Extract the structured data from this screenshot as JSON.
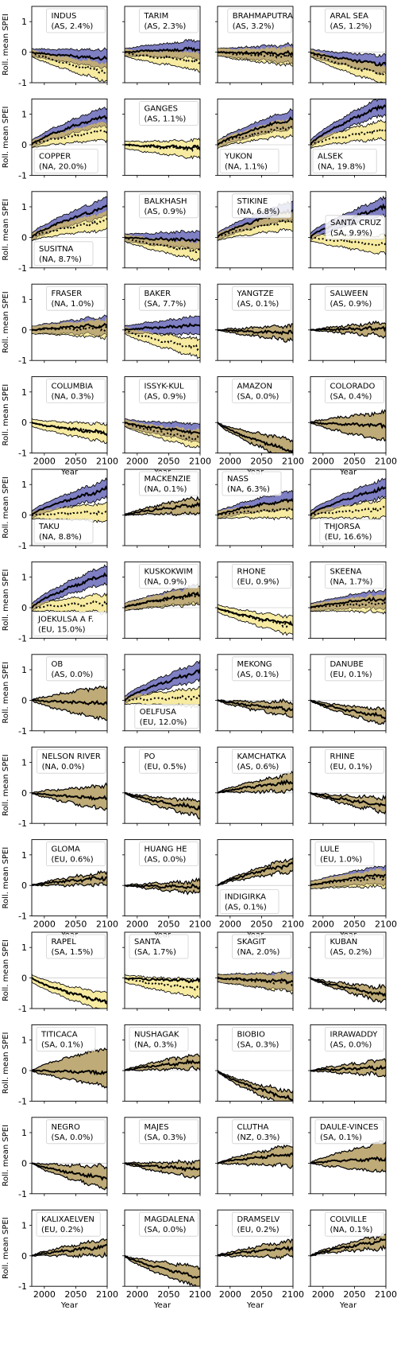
{
  "figure": {
    "ylabel": "Roll. mean SPEI",
    "xlabel": "Year",
    "xticks": [
      2000,
      2050,
      2100
    ],
    "yticks": [
      -1,
      0,
      1
    ],
    "colors": {
      "blue": "#7f7fc4",
      "yellow": "#f7eba1",
      "overlap": "#bfab77",
      "line": "#000000"
    }
  },
  "chart_data": {
    "type": "area",
    "x_range": [
      1980,
      2100
    ],
    "y_range": [
      -1,
      1.5
    ],
    "panels": [
      {
        "name": "INDUS",
        "region": "(AS, 2.4%)",
        "label_pos": "top",
        "end_mid": -0.2,
        "end_dash": -0.65,
        "end_upper": 0.05,
        "end_lower": -0.4,
        "blue": true,
        "yellow": true
      },
      {
        "name": "TARIM",
        "region": "(AS, 2.3%)",
        "label_pos": "top",
        "end_mid": 0.1,
        "end_dash": -0.3,
        "end_upper": 0.5,
        "end_lower": -0.1,
        "blue": true,
        "yellow": true
      },
      {
        "name": "BRAHMAPUTRA",
        "region": "(AS, 3.2%)",
        "label_pos": "top",
        "end_mid": -0.05,
        "end_dash": -0.15,
        "end_upper": 0.1,
        "end_lower": -0.3,
        "blue": true,
        "yellow": true
      },
      {
        "name": "ARAL SEA",
        "region": "(AS, 1.2%)",
        "label_pos": "top",
        "end_mid": -0.4,
        "end_dash": -0.75,
        "end_upper": 0.0,
        "end_lower": -0.85,
        "blue": true,
        "yellow": true
      },
      {
        "name": "COPPER",
        "region": "(NA, 20.0%)",
        "label_pos": "bottom-left",
        "end_mid": 0.95,
        "end_dash": 0.45,
        "end_upper": 1.15,
        "end_lower": 0.2,
        "blue": true,
        "yellow": true
      },
      {
        "name": "GANGES",
        "region": "(AS, 1.1%)",
        "label_pos": "top",
        "end_mid": -0.1,
        "end_dash": -0.15,
        "end_upper": 0.1,
        "end_lower": -0.35,
        "blue": false,
        "yellow": true
      },
      {
        "name": "YUKON",
        "region": "(NA, 1.1%)",
        "label_pos": "bottom-left",
        "end_mid": 0.85,
        "end_dash": 0.6,
        "end_upper": 1.2,
        "end_lower": 0.35,
        "blue": true,
        "yellow": true
      },
      {
        "name": "ALSEK",
        "region": "(NA, 19.8%)",
        "label_pos": "bottom-left",
        "end_mid": 1.3,
        "end_dash": 0.5,
        "end_upper": 1.5,
        "end_lower": 0.1,
        "blue": true,
        "yellow": true
      },
      {
        "name": "SUSITNA",
        "region": "(NA, 8.7%)",
        "label_pos": "bottom-left",
        "end_mid": 1.0,
        "end_dash": 0.55,
        "end_upper": 1.1,
        "end_lower": 0.3,
        "blue": true,
        "yellow": true
      },
      {
        "name": "BALKHASH",
        "region": "(AS, 0.9%)",
        "label_pos": "top",
        "end_mid": -0.1,
        "end_dash": -0.45,
        "end_upper": 0.2,
        "end_lower": -0.6,
        "blue": true,
        "yellow": true
      },
      {
        "name": "STIKINE",
        "region": "(NA, 6.8%)",
        "label_pos": "top",
        "end_mid": 0.9,
        "end_dash": 0.55,
        "end_upper": 1.05,
        "end_lower": 0.35,
        "blue": true,
        "yellow": true
      },
      {
        "name": "SANTA CRUZ",
        "region": "(SA, 9.9%)",
        "label_pos": "mid-right",
        "end_mid": 1.0,
        "end_dash": -0.25,
        "end_upper": 1.05,
        "end_lower": -0.5,
        "blue": true,
        "yellow": true
      },
      {
        "name": "FRASER",
        "region": "(NA, 1.0%)",
        "label_pos": "top",
        "end_mid": 0.15,
        "end_dash": 0.05,
        "end_upper": 0.3,
        "end_lower": -0.05,
        "blue": true,
        "yellow": true
      },
      {
        "name": "BAKER",
        "region": "(SA, 7.7%)",
        "label_pos": "top",
        "end_mid": 0.15,
        "end_dash": -0.6,
        "end_upper": 0.3,
        "end_lower": -0.75,
        "blue": true,
        "yellow": true
      },
      {
        "name": "YANGTZE",
        "region": "(AS, 0.1%)",
        "label_pos": "top",
        "end_mid": -0.1,
        "end_dash": -0.1,
        "end_upper": 0.1,
        "end_lower": -0.3,
        "blue": false,
        "yellow": false
      },
      {
        "name": "SALWEEN",
        "region": "(AS, 0.9%)",
        "label_pos": "top",
        "end_mid": 0.05,
        "end_dash": 0.05,
        "end_upper": 0.2,
        "end_lower": -0.15,
        "blue": false,
        "yellow": false
      },
      {
        "name": "COLUMBIA",
        "region": "(NA, 0.3%)",
        "label_pos": "top",
        "end_mid": -0.35,
        "end_dash": -0.35,
        "end_upper": -0.2,
        "end_lower": -0.55,
        "blue": false,
        "yellow": true
      },
      {
        "name": "ISSYK-KUL",
        "region": "(AS, 0.9%)",
        "label_pos": "top",
        "end_mid": -0.35,
        "end_dash": -0.55,
        "end_upper": -0.05,
        "end_lower": -0.85,
        "blue": true,
        "yellow": true
      },
      {
        "name": "AMAZON",
        "region": "(SA, 0.0%)",
        "label_pos": "top",
        "end_mid": -0.95,
        "end_dash": -0.95,
        "end_upper": -0.6,
        "end_lower": -1.2,
        "blue": false,
        "yellow": false
      },
      {
        "name": "COLORADO",
        "region": "(SA, 0.4%)",
        "label_pos": "top",
        "end_mid": -0.1,
        "end_dash": -0.1,
        "end_upper": 0.3,
        "end_lower": -0.55,
        "blue": false,
        "yellow": false
      },
      {
        "name": "TAKU",
        "region": "(NA, 8.8%)",
        "label_pos": "bottom-left",
        "end_mid": 0.85,
        "end_dash": 0.1,
        "end_upper": 1.0,
        "end_lower": -0.05,
        "blue": true,
        "yellow": true
      },
      {
        "name": "MACKENZIE",
        "region": "(NA, 0.1%)",
        "label_pos": "top",
        "end_mid": 0.35,
        "end_dash": 0.35,
        "end_upper": 0.55,
        "end_lower": 0.1,
        "blue": false,
        "yellow": false
      },
      {
        "name": "NASS",
        "region": "(NA, 6.3%)",
        "label_pos": "top-left",
        "end_mid": 0.5,
        "end_dash": 0.2,
        "end_upper": 0.65,
        "end_lower": 0.05,
        "blue": true,
        "yellow": true
      },
      {
        "name": "THJORSA",
        "region": "(EU, 16.6%)",
        "label_pos": "bottom-right",
        "end_mid": 0.9,
        "end_dash": 0.2,
        "end_upper": 1.05,
        "end_lower": -0.05,
        "blue": true,
        "yellow": true
      },
      {
        "name": "JOEKULSA A F.",
        "region": "(EU, 15.0%)",
        "label_pos": "bottom-left",
        "end_mid": 1.1,
        "end_dash": 0.15,
        "end_upper": 1.5,
        "end_lower": 0.0,
        "blue": true,
        "yellow": true
      },
      {
        "name": "KUSKOKWIM",
        "region": "(NA, 0.9%)",
        "label_pos": "top",
        "end_mid": 0.45,
        "end_dash": 0.4,
        "end_upper": 0.6,
        "end_lower": 0.2,
        "blue": true,
        "yellow": true
      },
      {
        "name": "RHONE",
        "region": "(EU, 0.9%)",
        "label_pos": "top",
        "end_mid": -0.55,
        "end_dash": -0.6,
        "end_upper": -0.4,
        "end_lower": -0.75,
        "blue": false,
        "yellow": true
      },
      {
        "name": "SKEENA",
        "region": "(NA, 1.7%)",
        "label_pos": "top",
        "end_mid": 0.3,
        "end_dash": 0.15,
        "end_upper": 0.45,
        "end_lower": 0.05,
        "blue": true,
        "yellow": true
      },
      {
        "name": "OB",
        "region": "(AS, 0.0%)",
        "label_pos": "top",
        "end_mid": -0.1,
        "end_dash": -0.1,
        "end_upper": 0.4,
        "end_lower": -0.6,
        "blue": false,
        "yellow": false
      },
      {
        "name": "OELFUSA",
        "region": "(EU, 12.0%)",
        "label_pos": "bottom-mid",
        "end_mid": 0.95,
        "end_dash": 0.1,
        "end_upper": 1.1,
        "end_lower": 0.0,
        "blue": true,
        "yellow": true
      },
      {
        "name": "MEKONG",
        "region": "(AS, 0.1%)",
        "label_pos": "top",
        "end_mid": -0.3,
        "end_dash": -0.3,
        "end_upper": -0.1,
        "end_lower": -0.5,
        "blue": false,
        "yellow": false
      },
      {
        "name": "DANUBE",
        "region": "(EU, 0.1%)",
        "label_pos": "top",
        "end_mid": -0.55,
        "end_dash": -0.55,
        "end_upper": -0.35,
        "end_lower": -0.75,
        "blue": false,
        "yellow": false
      },
      {
        "name": "NELSON RIVER",
        "region": "(NA, 0.0%)",
        "label_pos": "top",
        "end_mid": -0.2,
        "end_dash": -0.2,
        "end_upper": 0.2,
        "end_lower": -0.5,
        "blue": false,
        "yellow": false
      },
      {
        "name": "PO",
        "region": "(EU, 0.5%)",
        "label_pos": "top",
        "end_mid": -0.5,
        "end_dash": -0.5,
        "end_upper": -0.3,
        "end_lower": -0.75,
        "blue": false,
        "yellow": false
      },
      {
        "name": "KAMCHATKA",
        "region": "(AS, 0.6%)",
        "label_pos": "top",
        "end_mid": 0.35,
        "end_dash": 0.35,
        "end_upper": 0.6,
        "end_lower": 0.1,
        "blue": false,
        "yellow": false
      },
      {
        "name": "RHINE",
        "region": "(EU, 0.1%)",
        "label_pos": "top",
        "end_mid": -0.4,
        "end_dash": -0.4,
        "end_upper": -0.2,
        "end_lower": -0.6,
        "blue": false,
        "yellow": false
      },
      {
        "name": "GLOMA",
        "region": "(EU, 0.6%)",
        "label_pos": "top",
        "end_mid": 0.25,
        "end_dash": 0.25,
        "end_upper": 0.4,
        "end_lower": 0.05,
        "blue": false,
        "yellow": false
      },
      {
        "name": "HUANG HE",
        "region": "(AS, 0.0%)",
        "label_pos": "top",
        "end_mid": -0.05,
        "end_dash": -0.05,
        "end_upper": 0.1,
        "end_lower": -0.2,
        "blue": false,
        "yellow": false
      },
      {
        "name": "INDIGIRKA",
        "region": "(AS, 0.1%)",
        "label_pos": "bottom-left",
        "end_mid": 0.7,
        "end_dash": 0.7,
        "end_upper": 0.85,
        "end_lower": 0.5,
        "blue": false,
        "yellow": false
      },
      {
        "name": "LULE",
        "region": "(EU, 1.0%)",
        "label_pos": "top-left",
        "end_mid": 0.35,
        "end_dash": 0.25,
        "end_upper": 0.55,
        "end_lower": 0.05,
        "blue": true,
        "yellow": true
      },
      {
        "name": "RAPEL",
        "region": "(SA, 1.5%)",
        "label_pos": "top",
        "end_mid": -0.8,
        "end_dash": -0.8,
        "end_upper": -0.6,
        "end_lower": -1.0,
        "blue": false,
        "yellow": true
      },
      {
        "name": "SANTA",
        "region": "(SA, 1.7%)",
        "label_pos": "top-left",
        "end_mid": -0.1,
        "end_dash": -0.35,
        "end_upper": 0.4,
        "end_lower": -0.6,
        "blue": false,
        "yellow": true
      },
      {
        "name": "SKAGIT",
        "region": "(NA, 2.0%)",
        "label_pos": "top",
        "end_mid": -0.1,
        "end_dash": -0.15,
        "end_upper": 0.05,
        "end_lower": -0.3,
        "blue": true,
        "yellow": true
      },
      {
        "name": "KUBAN",
        "region": "(AS, 0.2%)",
        "label_pos": "top",
        "end_mid": -0.55,
        "end_dash": -0.55,
        "end_upper": -0.35,
        "end_lower": -0.75,
        "blue": false,
        "yellow": false
      },
      {
        "name": "TITICACA",
        "region": "(SA, 0.1%)",
        "label_pos": "top-left",
        "end_mid": -0.05,
        "end_dash": -0.05,
        "end_upper": 0.7,
        "end_lower": -0.45,
        "blue": false,
        "yellow": false
      },
      {
        "name": "NUSHAGAK",
        "region": "(NA, 0.3%)",
        "label_pos": "top-left",
        "end_mid": 0.3,
        "end_dash": 0.3,
        "end_upper": 0.5,
        "end_lower": 0.1,
        "blue": false,
        "yellow": false
      },
      {
        "name": "BIOBIO",
        "region": "(SA, 0.3%)",
        "label_pos": "top",
        "end_mid": -0.95,
        "end_dash": -0.95,
        "end_upper": -0.75,
        "end_lower": -1.2,
        "blue": false,
        "yellow": false
      },
      {
        "name": "IRRAWADDY",
        "region": "(AS, 0.0%)",
        "label_pos": "top",
        "end_mid": 0.1,
        "end_dash": 0.1,
        "end_upper": 0.3,
        "end_lower": -0.1,
        "blue": false,
        "yellow": false
      },
      {
        "name": "NEGRO",
        "region": "(SA, 0.0%)",
        "label_pos": "top",
        "end_mid": -0.5,
        "end_dash": -0.5,
        "end_upper": -0.15,
        "end_lower": -0.8,
        "blue": false,
        "yellow": false
      },
      {
        "name": "MAJES",
        "region": "(SA, 0.3%)",
        "label_pos": "top",
        "end_mid": -0.2,
        "end_dash": -0.2,
        "end_upper": 0.0,
        "end_lower": -0.45,
        "blue": false,
        "yellow": false
      },
      {
        "name": "CLUTHA",
        "region": "(NZ, 0.3%)",
        "label_pos": "top",
        "end_mid": 0.3,
        "end_dash": 0.3,
        "end_upper": 0.55,
        "end_lower": -0.05,
        "blue": false,
        "yellow": false
      },
      {
        "name": "DAULE-VINCES",
        "region": "(SA, 0.1%)",
        "label_pos": "top-left",
        "end_mid": 0.15,
        "end_dash": 0.15,
        "end_upper": 0.65,
        "end_lower": -0.25,
        "blue": false,
        "yellow": false
      },
      {
        "name": "KALIXAELVEN",
        "region": "(EU, 0.2%)",
        "label_pos": "top-left",
        "end_mid": 0.3,
        "end_dash": 0.3,
        "end_upper": 0.5,
        "end_lower": 0.05,
        "blue": false,
        "yellow": false
      },
      {
        "name": "MAGDALENA",
        "region": "(SA, 0.0%)",
        "label_pos": "top",
        "end_mid": -0.7,
        "end_dash": -0.7,
        "end_upper": -0.4,
        "end_lower": -1.0,
        "blue": false,
        "yellow": false
      },
      {
        "name": "DRAMSELV",
        "region": "(EU, 0.2%)",
        "label_pos": "top",
        "end_mid": 0.25,
        "end_dash": 0.25,
        "end_upper": 0.45,
        "end_lower": 0.0,
        "blue": false,
        "yellow": false
      },
      {
        "name": "COLVILLE",
        "region": "(NA, 0.1%)",
        "label_pos": "top",
        "end_mid": 0.5,
        "end_dash": 0.5,
        "end_upper": 0.65,
        "end_lower": 0.3,
        "blue": false,
        "yellow": false
      }
    ]
  }
}
